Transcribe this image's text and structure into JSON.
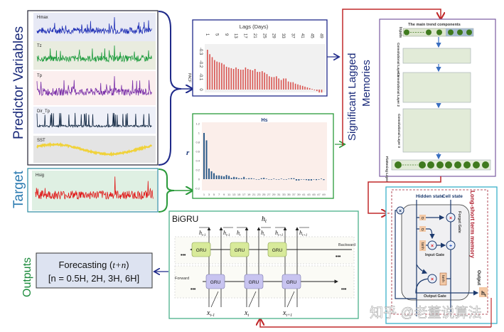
{
  "left": {
    "predictor_label": "Predictor Variables",
    "target_label": "Target",
    "panels": [
      {
        "name": "Hmax",
        "color": "#1f2fb5",
        "bg": "#e7e9f5"
      },
      {
        "name": "Tz",
        "color": "#1a9a3a",
        "bg": "#e9ecdf"
      },
      {
        "name": "Tp",
        "color": "#7a2fa8",
        "bg": "#fbeeee"
      },
      {
        "name": "Dir_Tp",
        "color": "#0f2540",
        "bg": "#eef0f8"
      },
      {
        "name": "SST",
        "color": "#f0d23a",
        "bg": "#e4e4e4"
      }
    ],
    "target_panel": {
      "name": "Hsig",
      "color": "#e01818",
      "bg": "#dff0e3"
    }
  },
  "middle": {
    "significant_label_1": "Significant Lagged",
    "significant_label_2": "Memories"
  },
  "chart_data": [
    {
      "type": "bar",
      "title": "Lags (Days)",
      "ylabel": "PACF",
      "x_tick_labels": [
        "1",
        "5",
        "9",
        "13",
        "17",
        "21",
        "25",
        "29",
        "33",
        "37",
        "41",
        "45",
        "49"
      ],
      "y_tick_labels": [
        "-0.3",
        "-0.2",
        "-0.1",
        "0"
      ],
      "x": [
        1,
        2,
        3,
        4,
        5,
        6,
        7,
        8,
        9,
        10,
        11,
        12,
        13,
        14,
        15,
        16,
        17,
        18,
        19,
        20,
        21,
        22,
        23,
        24,
        25,
        26,
        27,
        28,
        29,
        30,
        31,
        32,
        33,
        34,
        35,
        36,
        37,
        38,
        39,
        40,
        41,
        42,
        43,
        44,
        45,
        46,
        47,
        48,
        49
      ],
      "values": [
        0.27,
        0.24,
        0.22,
        0.2,
        0.19,
        0.185,
        0.18,
        0.17,
        0.155,
        0.15,
        0.145,
        0.14,
        0.15,
        0.14,
        0.135,
        0.135,
        0.15,
        0.14,
        0.135,
        0.13,
        0.14,
        0.12,
        0.12,
        0.125,
        0.115,
        0.105,
        0.09,
        0.085,
        0.085,
        0.09,
        0.075,
        0.065,
        0.075,
        0.075,
        0.055,
        0.05,
        0.05,
        0.04,
        0.035,
        0.03,
        0.025,
        0.02,
        0.015,
        0.01,
        0.005,
        -0.005,
        -0.01,
        -0.02,
        -0.02
      ],
      "color": "#d9534f",
      "ylim": [
        0,
        0.3
      ]
    },
    {
      "type": "bar",
      "title": "Hs",
      "ylabel": "r",
      "x_tick_labels": [
        "1",
        "3",
        "5",
        "7",
        "9",
        "11",
        "13",
        "15",
        "17",
        "19",
        "21",
        "23",
        "25",
        "27",
        "29",
        "31",
        "33",
        "35",
        "37",
        "39",
        "41",
        "43",
        "45",
        "47",
        "49"
      ],
      "y_tick_labels": [
        "1.2",
        "1",
        "0.8",
        "0.6",
        "0.4",
        "0.2",
        "0",
        "-0.2"
      ],
      "x": [
        1,
        2,
        3,
        4,
        5,
        6,
        7,
        8,
        9,
        10,
        11,
        12,
        13,
        14,
        15,
        16,
        17,
        18,
        19,
        20,
        21,
        22,
        23,
        24,
        25,
        26,
        27,
        28,
        29,
        30,
        31,
        32,
        33,
        34,
        35,
        36,
        37,
        38,
        39,
        40,
        41,
        42,
        43,
        44,
        45,
        46,
        47,
        48,
        49
      ],
      "values": [
        1.0,
        0.84,
        0.23,
        0.17,
        0.13,
        0.08,
        0.08,
        0.07,
        0.06,
        0.09,
        0.07,
        0.03,
        0.05,
        0.04,
        0.02,
        0.02,
        0.05,
        0.01,
        0.02,
        0.02,
        0.01,
        0.0,
        -0.01,
        0.02,
        0.03,
        0.01,
        0.0,
        -0.01,
        0.01,
        0.0,
        -0.01,
        0.01,
        0.0,
        -0.01,
        0.01,
        0.02,
        0.02,
        -0.03,
        -0.03,
        0.0,
        0.0,
        -0.02,
        -0.03,
        -0.03,
        0.0,
        -0.02,
        -0.01,
        0.01,
        -0.02
      ],
      "color": "#2e5c8a",
      "ylim": [
        -0.2,
        1.2
      ]
    }
  ],
  "cnn": {
    "title": "The main trend components",
    "inputs": "Inputs",
    "layer1": "Convolutional Layer 1",
    "layer2": "Convolutional Layer 2",
    "layer3": "Convolutional Layer 3",
    "flatten": "Flattening Layer"
  },
  "lstm": {
    "title": "Long-short term memory",
    "hidden_state": "Hidden state",
    "cell_state": "Cell state",
    "forget_gate": "Forget Gate",
    "input_gate": "Input Gate",
    "output_gate": "Output Gate",
    "output": "Output",
    "ht": "h",
    "ht_sub": "t",
    "sigma1": "σ",
    "sigma2": "σ",
    "tanh1": "tanh",
    "tanh2": "tanh",
    "mult": "×",
    "plus": "+"
  },
  "bigru": {
    "title": "BiGRU",
    "ht": "h",
    "ht_sub": "t",
    "backward": "Backward",
    "forward": "Forward",
    "gru": "GRU",
    "ellipsis": "•••",
    "h_labels": [
      {
        "h": "h",
        "sub": "t-1"
      },
      {
        "h": "h",
        "sub": "t-1"
      },
      {
        "h": "h",
        "sub": "t"
      },
      {
        "h": "h",
        "sub": "t"
      },
      {
        "h": "h",
        "sub": "t+1"
      },
      {
        "h": "h",
        "sub": "t+1"
      }
    ],
    "x_labels": [
      {
        "x": "x",
        "sub": "t-1"
      },
      {
        "x": "x",
        "sub": "t"
      },
      {
        "x": "x",
        "sub": "t+1"
      }
    ]
  },
  "outputs": {
    "label": "Outputs",
    "forecast_line1": "Forecasting (",
    "forecast_var": "t+n",
    "forecast_close": ")",
    "forecast_line2": "[n = 0.5H, 2H, 3H, 6H]"
  },
  "watermark": "知乎 @老董说算法"
}
